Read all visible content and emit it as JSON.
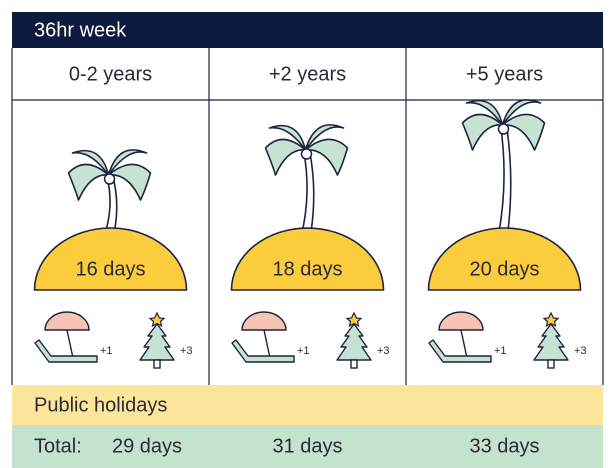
{
  "header": {
    "title": "36hr week"
  },
  "columns": [
    {
      "label": "0-2 years",
      "days": "16 days",
      "extras": [
        "+1",
        "+3"
      ],
      "total": "29 days"
    },
    {
      "label": "+2 years",
      "days": "18 days",
      "extras": [
        "+1",
        "+3"
      ],
      "total": "31 days"
    },
    {
      "label": "+5 years",
      "days": "20 days",
      "extras": [
        "+1",
        "+3"
      ],
      "total": "33 days"
    }
  ],
  "public_holidays": "Public holidays",
  "total_label": "Total:"
}
